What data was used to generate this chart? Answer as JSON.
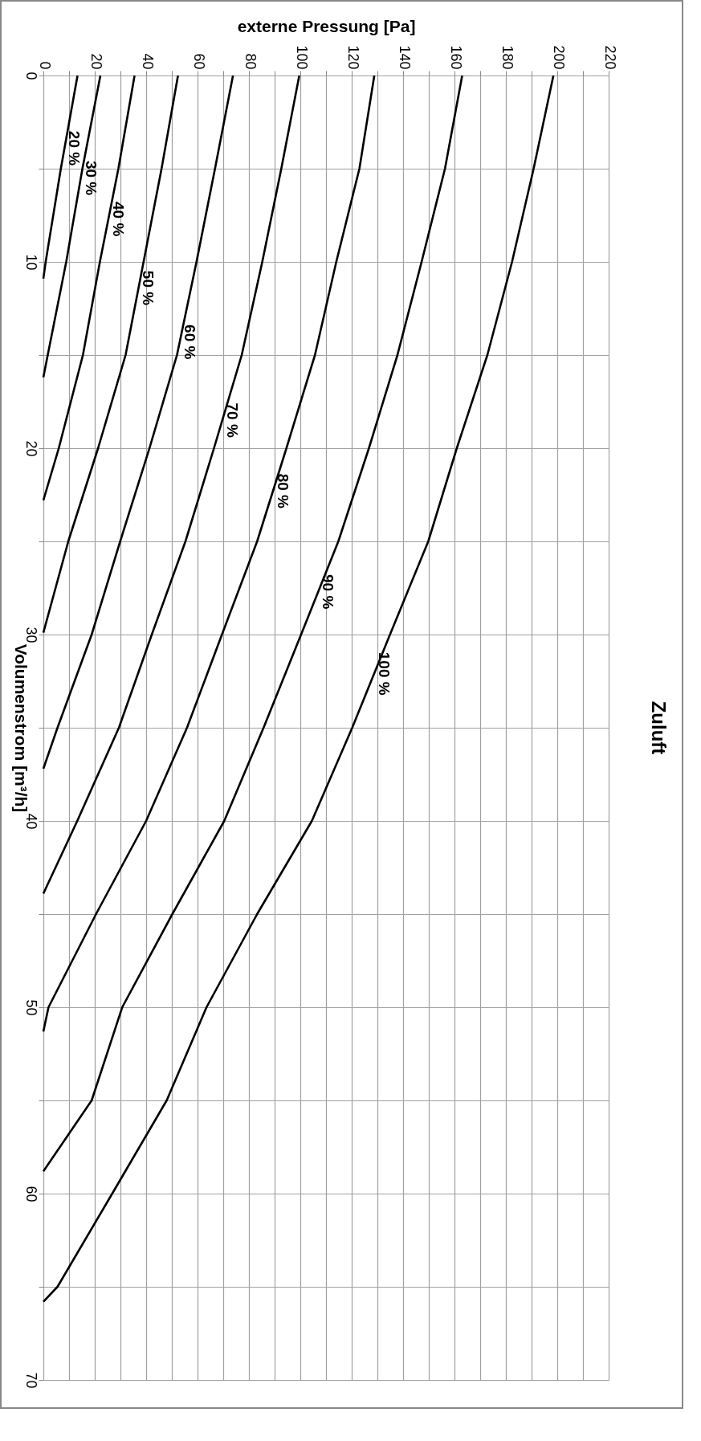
{
  "chart_data": {
    "type": "line",
    "title": "Zuluft",
    "xlabel": "externe Pressung [Pa]",
    "ylabel": "Volumenstrom [m³/h]",
    "xlim": [
      0,
      220
    ],
    "ylim": [
      70,
      0
    ],
    "xticks": [
      0,
      {
        "value": 10,
        "label": null
      },
      20,
      {
        "value": 30,
        "label": null
      },
      40,
      {
        "value": 50,
        "label": null
      },
      60,
      {
        "value": 70,
        "label": null
      },
      80,
      {
        "value": 90,
        "label": null
      },
      100,
      {
        "value": 110,
        "label": null
      },
      120,
      {
        "value": 130,
        "label": null
      },
      140,
      {
        "value": 150,
        "label": null
      },
      160,
      {
        "value": 170,
        "label": null
      },
      180,
      {
        "value": 190,
        "label": null
      },
      200,
      {
        "value": 210,
        "label": null
      },
      220
    ],
    "yticks": [
      0,
      {
        "value": 5,
        "label": null
      },
      10,
      {
        "value": 15,
        "label": null
      },
      20,
      {
        "value": 25,
        "label": null
      },
      30,
      {
        "value": 35,
        "label": null
      },
      40,
      {
        "value": 45,
        "label": null
      },
      50,
      {
        "value": 55,
        "label": null
      },
      60,
      {
        "value": 65,
        "label": null
      },
      70
    ],
    "grid": true,
    "line_style": "solid",
    "series": [
      {
        "color": "#000000",
        "x": [
          13.3,
          6.8,
          0.9,
          0
        ],
        "values": [
          0,
          5,
          10,
          10.9
        ]
      },
      {
        "color": "#000000",
        "x": [
          22.2,
          15.2,
          8.9,
          1.7,
          0
        ],
        "values": [
          0,
          5,
          10,
          15,
          16.2
        ]
      },
      {
        "color": "#000000",
        "x": [
          35.5,
          29.2,
          22,
          15.4,
          6,
          0
        ],
        "values": [
          0,
          5,
          10,
          15,
          20,
          22.8
        ]
      },
      {
        "color": "#000000",
        "x": [
          52.4,
          46,
          39,
          32,
          21.3,
          9.7,
          0
        ],
        "values": [
          0,
          5,
          10,
          15,
          20,
          25,
          29.9
        ]
      },
      {
        "color": "#000000",
        "x": [
          73.8,
          66.8,
          59.6,
          52,
          41.3,
          29.9,
          18.8,
          5.5,
          0
        ],
        "values": [
          0,
          5,
          10,
          15,
          20,
          25,
          30,
          35,
          37.2
        ]
      },
      {
        "color": "#000000",
        "x": [
          99.6,
          92.6,
          85.2,
          77.2,
          66.4,
          55.3,
          42.2,
          29.4,
          13.2,
          0
        ],
        "values": [
          0,
          5,
          10,
          15,
          20,
          25,
          30,
          35,
          40,
          43.9
        ]
      },
      {
        "color": "#000000",
        "x": [
          128.8,
          123,
          114,
          105.7,
          94.6,
          83.2,
          69.5,
          55.9,
          40,
          20.5,
          2,
          0
        ],
        "values": [
          0,
          5,
          10,
          15,
          20,
          25,
          30,
          35,
          40,
          45,
          50,
          51.3
        ]
      },
      {
        "color": "#000000",
        "x": [
          163,
          156.3,
          147.2,
          137.8,
          126.7,
          114.8,
          100.3,
          85.7,
          70.4,
          50.2,
          30.7,
          18.8,
          0
        ],
        "values": [
          0,
          5,
          10,
          15,
          20,
          25,
          30,
          35,
          40,
          45,
          50,
          55,
          58.8
        ]
      },
      {
        "color": "#000000",
        "x": [
          198.5,
          190.8,
          182.4,
          172.8,
          160.9,
          149.8,
          134.9,
          120.2,
          104.5,
          83.2,
          63.5,
          48,
          26.8,
          5.5,
          0
        ],
        "values": [
          0,
          5,
          10,
          15,
          20,
          25,
          30,
          35,
          40,
          45,
          50,
          55,
          60,
          65,
          65.8
        ]
      }
    ],
    "annotations": [
      {
        "text": "20 %",
        "x": 8.2,
        "y": 3.9
      },
      {
        "text": "30 %",
        "x": 14.6,
        "y": 5.5
      },
      {
        "text": "40 %",
        "x": 25.3,
        "y": 7.7
      },
      {
        "text": "50 %",
        "x": 37,
        "y": 11.4
      },
      {
        "text": "60 %",
        "x": 53.1,
        "y": 14.3
      },
      {
        "text": "70 %",
        "x": 69.6,
        "y": 18.5
      },
      {
        "text": "80 %",
        "x": 89.4,
        "y": 22.3
      },
      {
        "text": "90 %",
        "x": 107,
        "y": 27.7
      },
      {
        "text": "100 %",
        "x": 128.7,
        "y": 32.1
      }
    ]
  }
}
